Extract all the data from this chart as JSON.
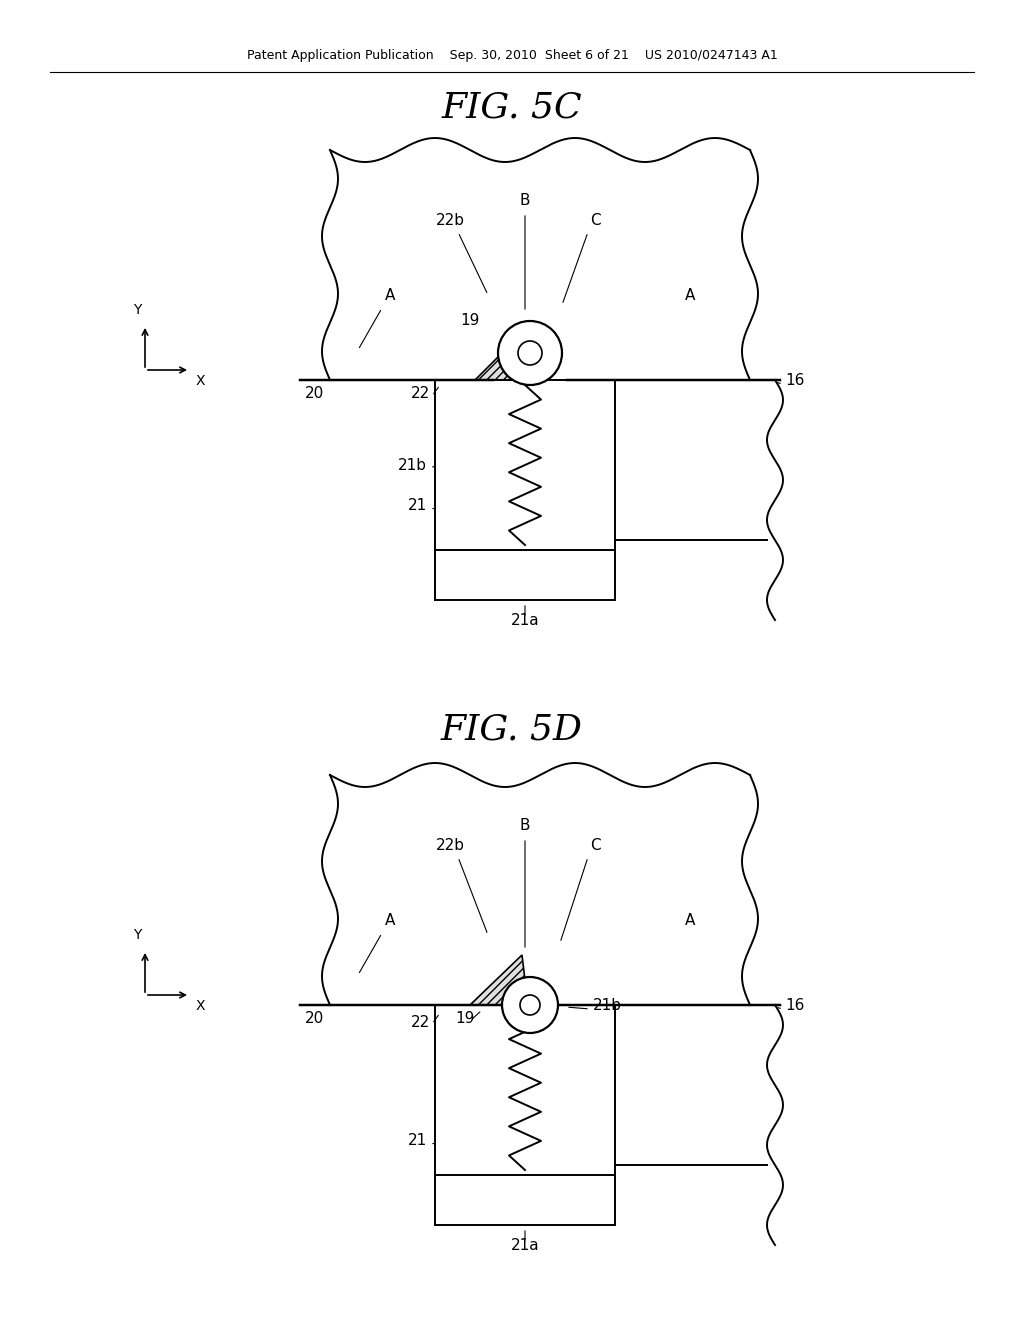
{
  "bg_color": "#ffffff",
  "line_color": "#000000",
  "header_text": "Patent Application Publication    Sep. 30, 2010  Sheet 6 of 21    US 2010/0247143 A1",
  "fig5c_title": "FIG. 5C",
  "fig5d_title": "FIG. 5D"
}
